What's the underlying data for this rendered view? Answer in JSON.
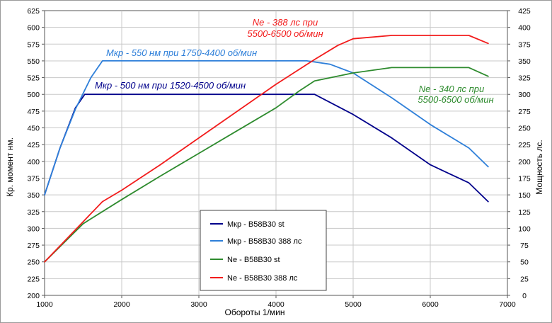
{
  "chart_data": {
    "type": "line",
    "xlabel": "Обороты  1/мин",
    "ylabel_left": "Кр. момент нм.",
    "ylabel_right": "Мощность  лс.",
    "xlim": [
      1000,
      7000
    ],
    "ylim_left": [
      200,
      625
    ],
    "ylim_right": [
      0,
      425
    ],
    "x_ticks": [
      1000,
      2000,
      3000,
      4000,
      5000,
      6000,
      7000
    ],
    "y_left_ticks": [
      200,
      225,
      250,
      275,
      300,
      325,
      350,
      375,
      400,
      425,
      450,
      475,
      500,
      525,
      550,
      575,
      600,
      625
    ],
    "y_right_ticks": [
      0,
      25,
      50,
      75,
      100,
      125,
      150,
      175,
      200,
      225,
      250,
      275,
      300,
      325,
      350,
      375,
      400,
      425
    ],
    "grid": true,
    "legend_position": "bottom-center",
    "series": [
      {
        "name": "Мкр - B58B30 st",
        "axis": "left",
        "color": "#00008B",
        "points": [
          [
            1000,
            350
          ],
          [
            1200,
            420
          ],
          [
            1400,
            480
          ],
          [
            1520,
            500
          ],
          [
            2000,
            500
          ],
          [
            3000,
            500
          ],
          [
            4000,
            500
          ],
          [
            4500,
            500
          ],
          [
            5000,
            470
          ],
          [
            5500,
            435
          ],
          [
            6000,
            395
          ],
          [
            6500,
            368
          ],
          [
            6750,
            340
          ]
        ]
      },
      {
        "name": "Мкр - B58B30 388 лс",
        "axis": "left",
        "color": "#2E7FD9",
        "points": [
          [
            1000,
            350
          ],
          [
            1200,
            420
          ],
          [
            1400,
            478
          ],
          [
            1600,
            525
          ],
          [
            1750,
            550
          ],
          [
            2000,
            550
          ],
          [
            3000,
            550
          ],
          [
            4000,
            550
          ],
          [
            4400,
            550
          ],
          [
            4700,
            545
          ],
          [
            5000,
            532
          ],
          [
            5500,
            495
          ],
          [
            6000,
            455
          ],
          [
            6500,
            420
          ],
          [
            6750,
            392
          ]
        ]
      },
      {
        "name": "Ne  -  B58B30 st",
        "axis": "right",
        "color": "#2E8B2E",
        "points": [
          [
            1000,
            50
          ],
          [
            1500,
            107
          ],
          [
            2000,
            143
          ],
          [
            2500,
            178
          ],
          [
            3000,
            212
          ],
          [
            3500,
            246
          ],
          [
            4000,
            280
          ],
          [
            4300,
            305
          ],
          [
            4500,
            320
          ],
          [
            5000,
            332
          ],
          [
            5500,
            340
          ],
          [
            6000,
            340
          ],
          [
            6500,
            340
          ],
          [
            6750,
            327
          ]
        ]
      },
      {
        "name": "Ne  -  B58B30 388 лс",
        "axis": "right",
        "color": "#F21C1C",
        "points": [
          [
            1000,
            50
          ],
          [
            1500,
            110
          ],
          [
            1750,
            140
          ],
          [
            2000,
            157
          ],
          [
            2500,
            195
          ],
          [
            3000,
            235
          ],
          [
            3500,
            275
          ],
          [
            4000,
            315
          ],
          [
            4500,
            352
          ],
          [
            4800,
            373
          ],
          [
            5000,
            383
          ],
          [
            5500,
            388
          ],
          [
            6000,
            388
          ],
          [
            6500,
            388
          ],
          [
            6750,
            376
          ]
        ]
      }
    ],
    "annotations": [
      {
        "lines": [
          "Ne - 388 лс при",
          "5500-6500 об/мин"
        ],
        "color": "#F21C1C"
      },
      {
        "lines": [
          "Мкр - 550 нм при 1750-4400 об/мин"
        ],
        "color": "#2E7FD9"
      },
      {
        "lines": [
          "Мкр - 500 нм при 1520-4500 об/мин"
        ],
        "color": "#00008B"
      },
      {
        "lines": [
          "Ne - 340 лс при",
          "5500-6500 об/мин"
        ],
        "color": "#2E8B2E"
      }
    ]
  }
}
